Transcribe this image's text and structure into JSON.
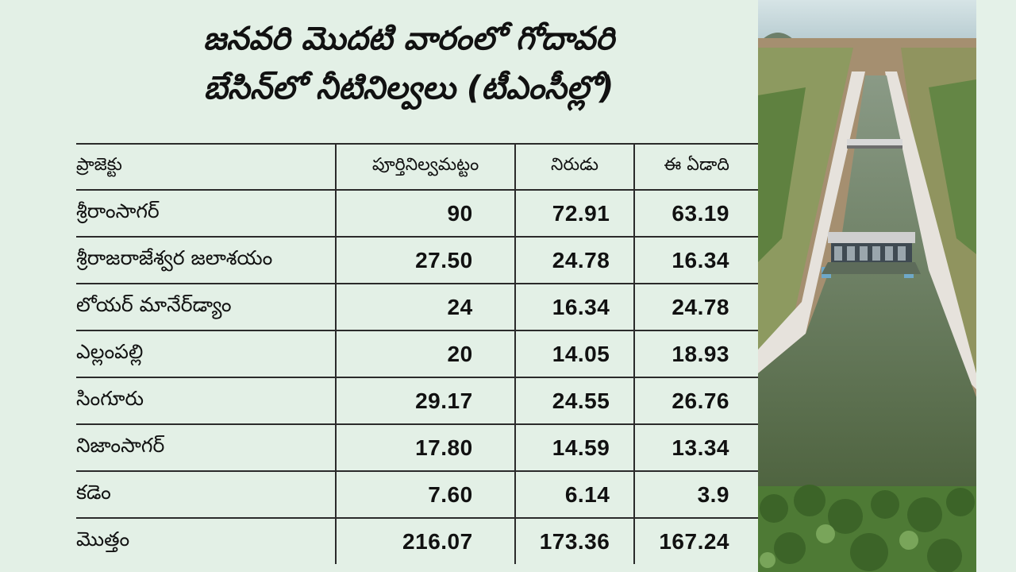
{
  "title_lines": [
    "జనవరి మొదటి వారంలో గోదావరి",
    "బేసిన్‌లో నీటినిల్వలు (టీఎంసీల్లో)"
  ],
  "table": {
    "headers": {
      "project": "ప్రాజెక్టు",
      "full_storage": "పూర్తినిల్వమట్టం",
      "last_year": "నిరుడు",
      "this_year": "ఈ ఏడాది"
    },
    "rows": [
      {
        "project": "శ్రీరాంసాగర్",
        "full_storage": "90",
        "last_year": "72.91",
        "this_year": "63.19"
      },
      {
        "project": "శ్రీరాజరాజేశ్వర జలాశయం",
        "full_storage": "27.50",
        "last_year": "24.78",
        "this_year": "16.34"
      },
      {
        "project": "లోయర్ మానేర్‌డ్యాం",
        "full_storage": "24",
        "last_year": "16.34",
        "this_year": "24.78"
      },
      {
        "project": "ఎల్లంపల్లి",
        "full_storage": "20",
        "last_year": "14.05",
        "this_year": "18.93"
      },
      {
        "project": "సింగూరు",
        "full_storage": "29.17",
        "last_year": "24.55",
        "this_year": "26.76"
      },
      {
        "project": "నిజాంసాగర్",
        "full_storage": "17.80",
        "last_year": "14.59",
        "this_year": "13.34"
      },
      {
        "project": "కడెం",
        "full_storage": "7.60",
        "last_year": "6.14",
        "this_year": "3.9"
      },
      {
        "project": "మొత్తం",
        "full_storage": "216.07",
        "last_year": "173.36",
        "this_year": "167.24"
      }
    ]
  },
  "colors": {
    "background": "#e3f0e6",
    "sky": "#c8dce0",
    "water": "#5c6f4a",
    "vegetation": "#4f7a3a",
    "concrete": "#dcdcdc"
  }
}
